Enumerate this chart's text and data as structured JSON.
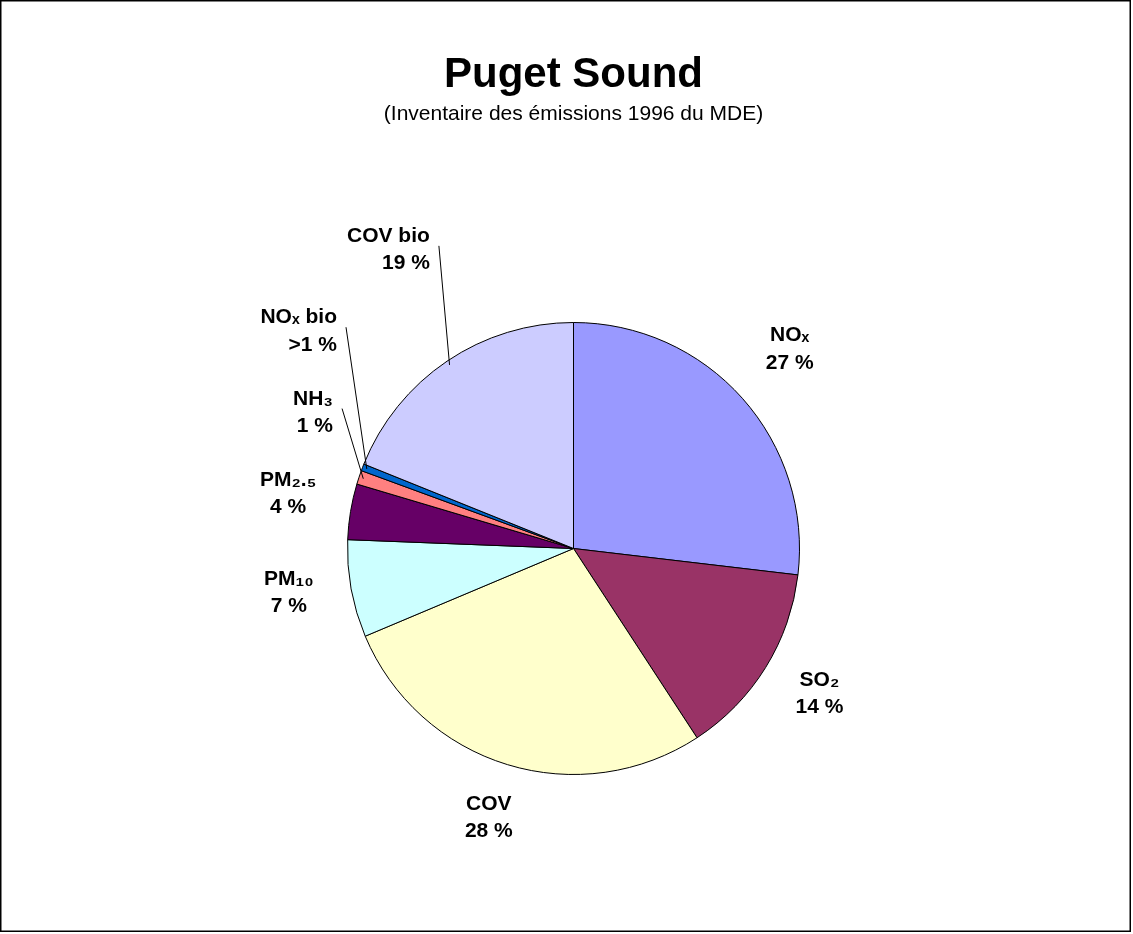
{
  "chart_data": {
    "type": "pie",
    "title": "Puget Sound",
    "subtitle": "(Inventaire des émissions 1996 du MDE)",
    "categories": [
      "NOₓ",
      "SO₂",
      "COV",
      "PM₁₀",
      "PM₂.₅",
      "NH₃",
      "NOₓ bio",
      "COV bio"
    ],
    "values": [
      27,
      14,
      28,
      7,
      4,
      1,
      0.5,
      19
    ],
    "value_labels": [
      "27 %",
      "14 %",
      "28 %",
      "7 %",
      "4 %",
      "1 %",
      ">1 %",
      "19 %"
    ],
    "colors": [
      "#9999ff",
      "#993366",
      "#ffffcc",
      "#ccffff",
      "#660066",
      "#ff8080",
      "#0066cc",
      "#ccccff"
    ]
  }
}
